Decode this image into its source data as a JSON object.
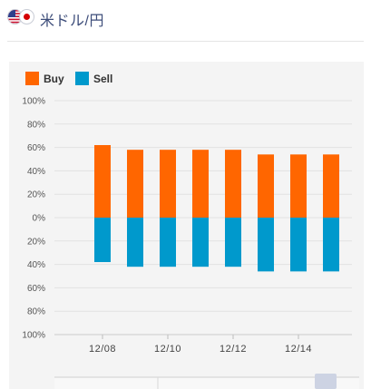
{
  "header": {
    "title": "米ドル/円",
    "flags": [
      "us-flag-icon",
      "jp-flag-icon"
    ]
  },
  "colors": {
    "buy": "#ff6600",
    "sell": "#0099cc",
    "title": "#3d4d7a",
    "panel_bg": "#f4f4f4"
  },
  "chart_data": {
    "type": "bar",
    "legend": [
      "Buy",
      "Sell"
    ],
    "legend_position": "top-left",
    "y_ticks": [
      "100%",
      "80%",
      "60%",
      "40%",
      "20%",
      "0%",
      "20%",
      "40%",
      "60%",
      "80%",
      "100%"
    ],
    "ylim": [
      -100,
      100
    ],
    "x_tick_labels": [
      "12/08",
      "12/10",
      "12/12",
      "12/14"
    ],
    "x_tick_days": [
      8,
      10,
      12,
      14
    ],
    "series": [
      {
        "name": "Buy",
        "x": [
          8,
          9,
          10,
          11,
          12,
          13,
          14,
          15
        ],
        "values": [
          62,
          58,
          58,
          58,
          58,
          54,
          54,
          54
        ]
      },
      {
        "name": "Sell",
        "x": [
          8,
          9,
          10,
          11,
          12,
          13,
          14,
          15
        ],
        "values": [
          -38,
          -42,
          -42,
          -42,
          -42,
          -46,
          -46,
          -46
        ]
      }
    ],
    "grid": true
  }
}
